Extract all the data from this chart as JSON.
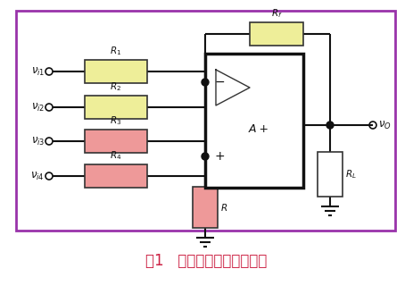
{
  "fig_width": 4.63,
  "fig_height": 3.29,
  "dpi": 100,
  "bg_color": "#ffffff",
  "border_color": "#9933aa",
  "caption": "图1   双端输入求和运算电路",
  "caption_color": "#cc2244",
  "caption_fontsize": 12,
  "R1_color": "#eeee99",
  "R2_color": "#eeee99",
  "R3_color": "#ee9999",
  "R4_color": "#ee9999",
  "Rf_color": "#eeee99",
  "R_color": "#ee9999",
  "RL_color": "#ffffff"
}
